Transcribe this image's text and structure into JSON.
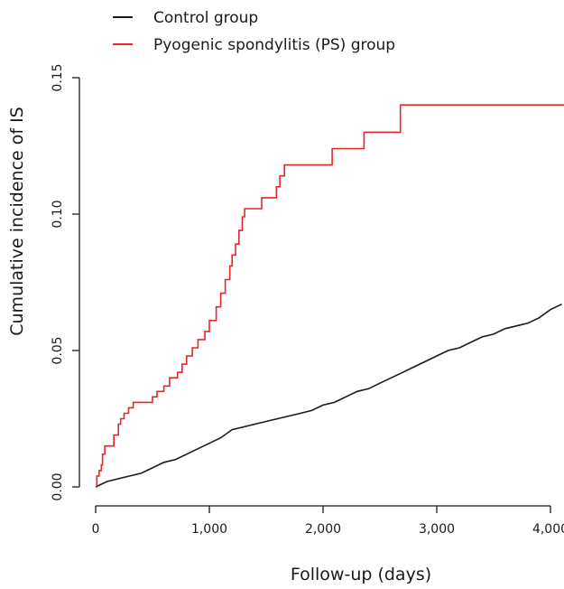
{
  "chart_data": {
    "type": "line",
    "title": "",
    "xlabel": "Follow-up (days)",
    "ylabel": "Cumulative incidence of IS",
    "xlim": [
      0,
      4150
    ],
    "ylim": [
      0,
      0.15
    ],
    "x_ticks": [
      0,
      1000,
      2000,
      3000,
      4000
    ],
    "x_tick_labels": [
      "0",
      "1,000",
      "2,000",
      "3,000",
      "4,000"
    ],
    "y_ticks": [
      0,
      0.05,
      0.1,
      0.15
    ],
    "y_tick_labels": [
      "0.00",
      "0.05",
      "0.10",
      "0.15"
    ],
    "grid": false,
    "legend": "top-left, outside plot area",
    "series": [
      {
        "name": "Control group",
        "color": "#1a1a1a",
        "step": false,
        "x": [
          0,
          100,
          200,
          300,
          400,
          500,
          600,
          700,
          800,
          900,
          1000,
          1100,
          1200,
          1300,
          1400,
          1500,
          1600,
          1700,
          1800,
          1900,
          2000,
          2100,
          2200,
          2300,
          2400,
          2500,
          2600,
          2700,
          2800,
          2900,
          3000,
          3100,
          3200,
          3300,
          3400,
          3500,
          3600,
          3700,
          3800,
          3900,
          4000,
          4100
        ],
        "y": [
          0.0,
          0.002,
          0.003,
          0.004,
          0.005,
          0.007,
          0.009,
          0.01,
          0.012,
          0.014,
          0.016,
          0.018,
          0.021,
          0.022,
          0.023,
          0.024,
          0.025,
          0.026,
          0.027,
          0.028,
          0.03,
          0.031,
          0.033,
          0.035,
          0.036,
          0.038,
          0.04,
          0.042,
          0.044,
          0.046,
          0.048,
          0.05,
          0.051,
          0.053,
          0.055,
          0.056,
          0.058,
          0.059,
          0.06,
          0.062,
          0.065,
          0.067
        ]
      },
      {
        "name": "Pyogenic spondylitis (PS) group",
        "color": "#e8262a",
        "step": true,
        "x": [
          0,
          10,
          30,
          50,
          60,
          80,
          160,
          200,
          220,
          250,
          290,
          330,
          500,
          540,
          600,
          650,
          720,
          760,
          800,
          850,
          900,
          960,
          1000,
          1060,
          1100,
          1140,
          1180,
          1200,
          1230,
          1260,
          1290,
          1310,
          1460,
          1590,
          1620,
          1660,
          2080,
          2360,
          2680,
          4150
        ],
        "y": [
          0.0,
          0.004,
          0.006,
          0.008,
          0.012,
          0.015,
          0.019,
          0.023,
          0.025,
          0.027,
          0.029,
          0.031,
          0.033,
          0.035,
          0.037,
          0.04,
          0.042,
          0.045,
          0.048,
          0.051,
          0.054,
          0.057,
          0.061,
          0.066,
          0.071,
          0.076,
          0.081,
          0.085,
          0.089,
          0.094,
          0.099,
          0.102,
          0.106,
          0.11,
          0.114,
          0.118,
          0.124,
          0.13,
          0.14,
          0.14
        ]
      }
    ]
  }
}
